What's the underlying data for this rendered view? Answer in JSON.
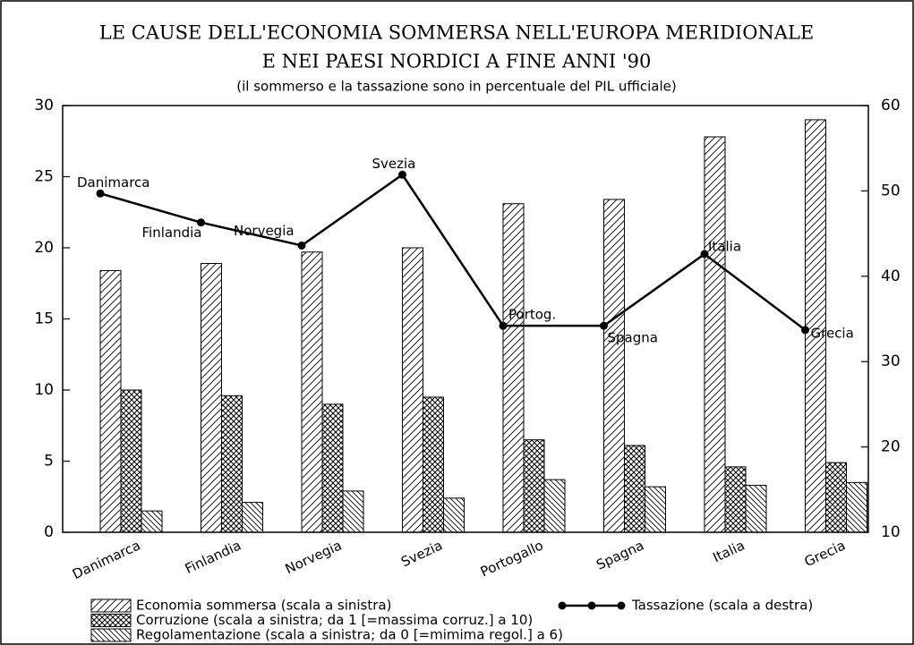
{
  "chart_data": {
    "type": "bar_line",
    "title": "LE CAUSE DELL'ECONOMIA SOMMERSA NELL'EUROPA MERIDIONALE",
    "title2": "E NEI PAESI NORDICI A FINE ANNI '90",
    "subtitle": "(il sommerso e la tassazione sono in percentuale del PIL ufficiale)",
    "categories": [
      "Danimarca",
      "Finlandia",
      "Norvegia",
      "Svezia",
      "Portogallo",
      "Spagna",
      "Italia",
      "Grecia"
    ],
    "series": [
      {
        "name": "Economia sommersa (scala a sinistra)",
        "pattern": "diag-right",
        "values": [
          18.4,
          18.9,
          19.7,
          20.0,
          23.1,
          23.4,
          27.8,
          29.0
        ]
      },
      {
        "name": "Corruzione (scala a sinistra; da 1 [=massima corruz.] a 10)",
        "pattern": "cross",
        "values": [
          10.0,
          9.6,
          9.0,
          9.5,
          6.5,
          6.1,
          4.6,
          4.9
        ]
      },
      {
        "name": "Regolamentazione (scala a sinistra; da 0 [=mimima regol.] a 6)",
        "pattern": "diag-left",
        "values": [
          1.5,
          2.1,
          2.9,
          2.4,
          3.7,
          3.2,
          3.3,
          3.5
        ]
      },
      {
        "name": "Tassazione (scala a destra)",
        "type": "line",
        "axis": "y2",
        "color": "#000",
        "values": [
          49.7,
          46.3,
          43.6,
          51.9,
          34.2,
          34.2,
          42.6,
          33.7
        ],
        "point_labels": [
          "Danimarca",
          "Finlandia",
          "Norvegia",
          "Svezia",
          "Portog.",
          "Spagna",
          "Italia",
          "Grecia"
        ]
      }
    ],
    "ylim": [
      0,
      30
    ],
    "yticks": [
      0,
      5,
      10,
      15,
      20,
      25,
      30
    ],
    "y2lim": [
      10,
      60
    ],
    "y2ticks": [
      10,
      20,
      30,
      40,
      50,
      60
    ]
  }
}
